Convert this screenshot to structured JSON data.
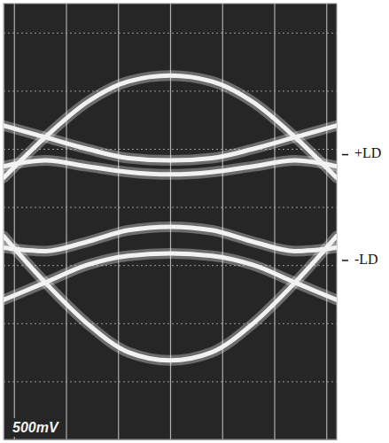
{
  "chart_data": {
    "type": "line",
    "color": "#f2f2f2",
    "grid": true,
    "tick_labels": false,
    "xlim": [
      -3.2,
      3.2
    ],
    "xticks": [
      -3,
      -2,
      -1,
      0,
      1,
      2,
      3
    ],
    "ylim": [
      -2000,
      1750
    ],
    "yticks": [
      -1500,
      -1000,
      -500,
      0,
      500,
      1000,
      1500
    ],
    "x": [
      -3.2,
      -2.4,
      -1.6,
      -0.8,
      0,
      0.8,
      1.6,
      2.4,
      3.2
    ],
    "series": [
      {
        "values": [
          250,
          600,
          900,
          1080,
          1130,
          1080,
          900,
          600,
          250
        ]
      },
      {
        "values": [
          -250,
          -650,
          -1000,
          -1250,
          -1320,
          -1250,
          -1000,
          -650,
          -250
        ]
      },
      {
        "values": [
          350,
          400,
          350,
          300,
          280,
          300,
          350,
          400,
          350
        ]
      },
      {
        "values": [
          700,
          600,
          500,
          420,
          400,
          420,
          500,
          600,
          700
        ]
      },
      {
        "values": [
          -350,
          -380,
          -300,
          -200,
          -170,
          -200,
          -300,
          -380,
          -350
        ]
      },
      {
        "values": [
          -800,
          -650,
          -500,
          -420,
          -400,
          -420,
          -500,
          -650,
          -800
        ]
      }
    ],
    "annotations": [
      {
        "text": "+LD",
        "y": 450
      },
      {
        "text": "-LD",
        "y": -460
      },
      {
        "text": "500mV"
      }
    ]
  }
}
